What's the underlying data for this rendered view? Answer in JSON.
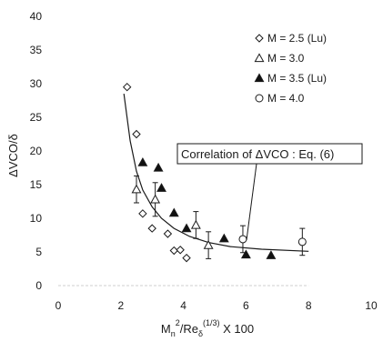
{
  "chart_data": {
    "type": "scatter",
    "xlabel": "M",
    "xlabel_sub1": "n",
    "xlabel_sup1": "2",
    "xlabel_mid": "/Re",
    "xlabel_sub2": "δ",
    "xlabel_sup2": "(1/3)",
    "xlabel_tail": " X 100",
    "ylabel": "ΔVCO/δ",
    "xlim": [
      0,
      10
    ],
    "ylim": [
      0,
      40
    ],
    "xticks": [
      "0",
      "2",
      "4",
      "6",
      "8",
      "10"
    ],
    "yticks": [
      "0",
      "5",
      "10",
      "15",
      "20",
      "25",
      "30",
      "35",
      "40"
    ],
    "legend_position": "top-right",
    "annotation": "Correlation of ΔVCO : Eq. (6)",
    "series": [
      {
        "name": "M = 2.5 (Lu)",
        "marker": "diamond-open",
        "points": [
          {
            "x": 2.2,
            "y": 29.5
          },
          {
            "x": 2.5,
            "y": 22.5
          },
          {
            "x": 2.7,
            "y": 10.7
          },
          {
            "x": 3.0,
            "y": 8.5
          },
          {
            "x": 3.5,
            "y": 7.7
          },
          {
            "x": 3.7,
            "y": 5.2
          },
          {
            "x": 3.9,
            "y": 5.3
          },
          {
            "x": 4.1,
            "y": 4.1
          }
        ]
      },
      {
        "name": "M = 3.0",
        "marker": "triangle-open",
        "points": [
          {
            "x": 2.5,
            "y": 14.3,
            "err": 2.0
          },
          {
            "x": 3.1,
            "y": 12.8,
            "err": 2.5
          },
          {
            "x": 4.4,
            "y": 9.0,
            "err": 2.0
          },
          {
            "x": 4.8,
            "y": 6.0,
            "err": 2.0
          }
        ]
      },
      {
        "name": "M = 3.5 (Lu)",
        "marker": "triangle-filled",
        "points": [
          {
            "x": 2.7,
            "y": 18.3
          },
          {
            "x": 3.2,
            "y": 17.5
          },
          {
            "x": 3.3,
            "y": 14.5
          },
          {
            "x": 3.7,
            "y": 10.8
          },
          {
            "x": 4.1,
            "y": 8.5
          },
          {
            "x": 5.3,
            "y": 7.0
          },
          {
            "x": 6.0,
            "y": 4.6
          },
          {
            "x": 6.8,
            "y": 4.5
          }
        ]
      },
      {
        "name": "M = 4.0",
        "marker": "circle-open",
        "points": [
          {
            "x": 5.9,
            "y": 6.9,
            "err": 2.0
          },
          {
            "x": 7.8,
            "y": 6.5,
            "err": 2.0
          }
        ]
      }
    ],
    "correlation_curve": {
      "points": [
        {
          "x": 2.1,
          "y": 28.5
        },
        {
          "x": 2.3,
          "y": 21.5
        },
        {
          "x": 2.5,
          "y": 17.0
        },
        {
          "x": 2.7,
          "y": 14.2
        },
        {
          "x": 3.0,
          "y": 11.7
        },
        {
          "x": 3.3,
          "y": 10.0
        },
        {
          "x": 3.7,
          "y": 8.5
        },
        {
          "x": 4.2,
          "y": 7.3
        },
        {
          "x": 4.8,
          "y": 6.4
        },
        {
          "x": 5.5,
          "y": 5.8
        },
        {
          "x": 6.5,
          "y": 5.4
        },
        {
          "x": 8.0,
          "y": 5.1
        }
      ]
    }
  }
}
